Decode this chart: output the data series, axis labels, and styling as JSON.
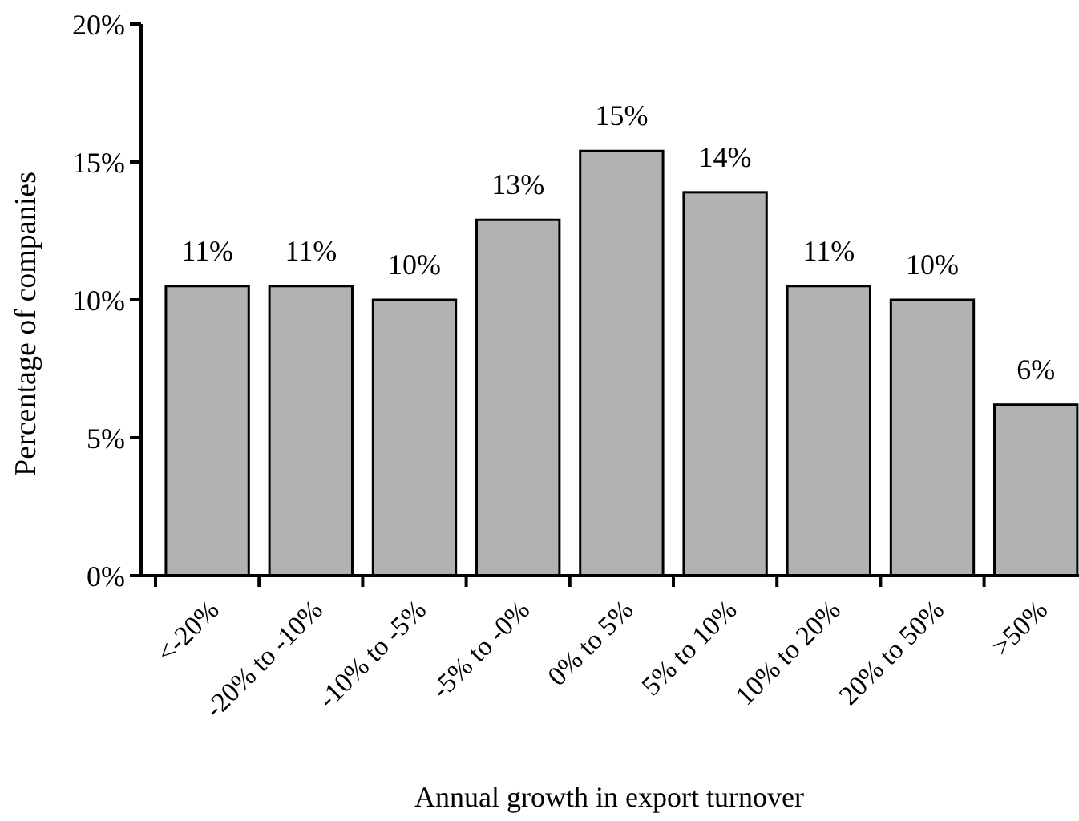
{
  "chart_data": {
    "type": "bar",
    "xlabel": "Annual growth in export turnover",
    "ylabel": "Percentage of companies",
    "categories": [
      "<-20%",
      "-20% to -10%",
      "-10% to -5%",
      "-5% to -0%",
      "0% to 5%",
      "5% to 10%",
      "10% to 20%",
      "20% to 50%",
      ">50%"
    ],
    "values": [
      10.5,
      10.5,
      10.0,
      12.9,
      15.4,
      13.9,
      10.5,
      10.0,
      6.2
    ],
    "value_labels": [
      "11%",
      "11%",
      "10%",
      "13%",
      "15%",
      "14%",
      "11%",
      "10%",
      "6%"
    ],
    "color": "#b1b2b4",
    "ylim": [
      0,
      20
    ],
    "yticks": [
      {
        "value": 0,
        "label": "0%"
      },
      {
        "value": 5,
        "label": "5%"
      },
      {
        "value": 10,
        "label": "10%"
      },
      {
        "value": 15,
        "label": "15%"
      },
      {
        "value": 20,
        "label": "20%"
      }
    ],
    "grid": false
  }
}
